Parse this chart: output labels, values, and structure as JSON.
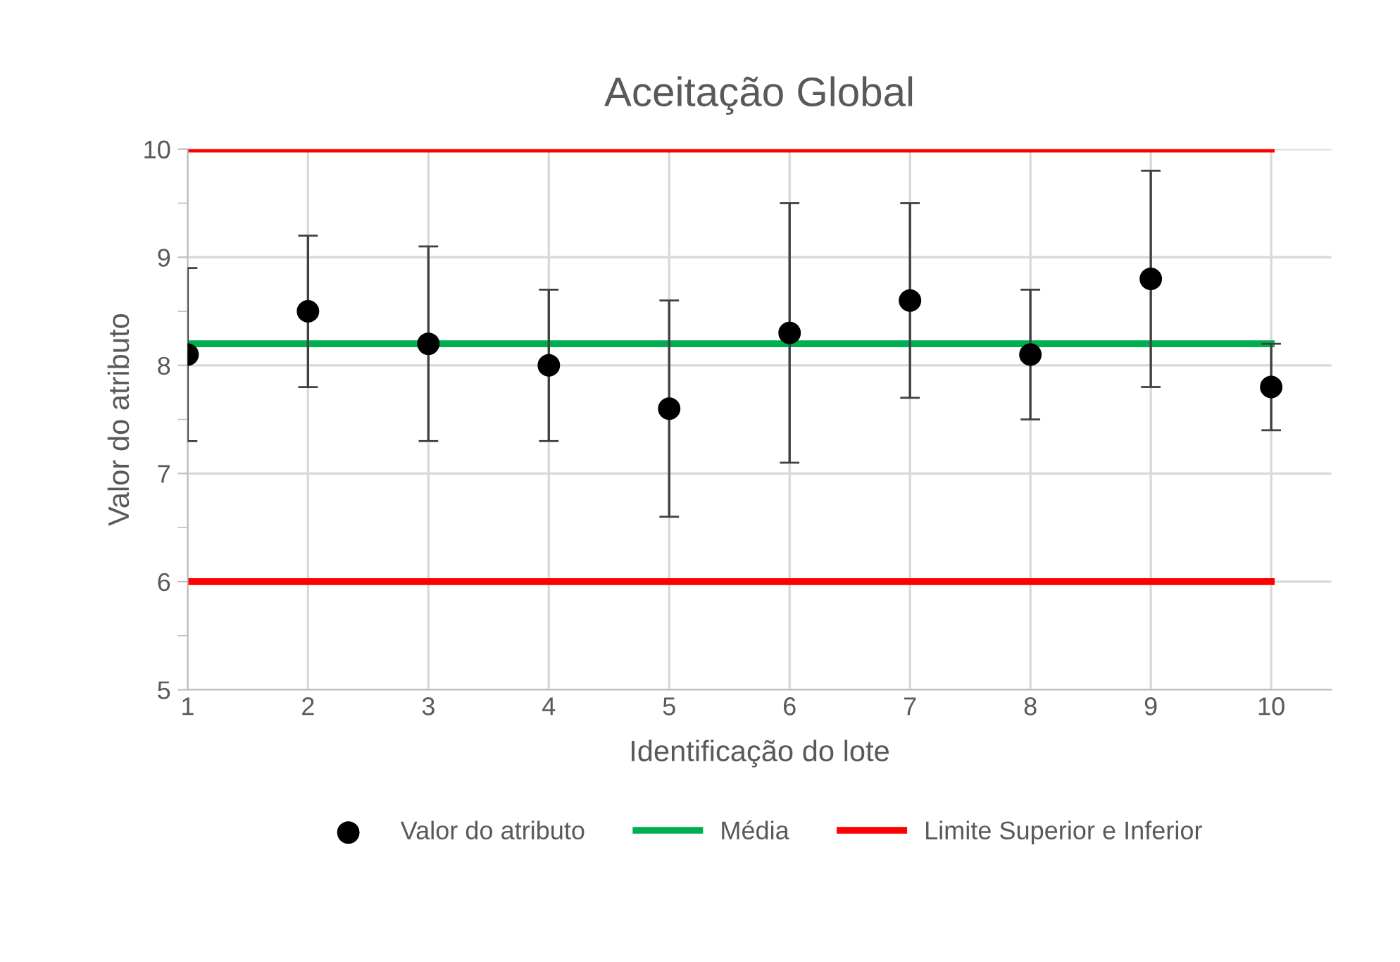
{
  "chart_data": {
    "type": "scatter",
    "title": "Aceitação Global",
    "xlabel": "Identificação do lote",
    "ylabel": "Valor do atributo",
    "xlim": [
      1,
      10.5
    ],
    "xticks": [
      1,
      2,
      3,
      4,
      5,
      6,
      7,
      8,
      9,
      10
    ],
    "ylim": [
      5,
      10
    ],
    "yticks": [
      5,
      6,
      7,
      8,
      9,
      10
    ],
    "grid": true,
    "legend": "bottom",
    "series": [
      {
        "name": "Valor do atributo",
        "color": "#000000",
        "marker": "circle",
        "x": [
          1,
          2,
          3,
          4,
          5,
          6,
          7,
          8,
          9,
          10
        ],
        "values": [
          8.1,
          8.5,
          8.2,
          8.0,
          7.6,
          8.3,
          8.6,
          8.1,
          8.8,
          7.8
        ],
        "errors": [
          [
            7.3,
            8.9
          ],
          [
            7.8,
            9.2
          ],
          [
            7.3,
            9.1
          ],
          [
            7.3,
            8.7
          ],
          [
            6.6,
            8.6
          ],
          [
            7.1,
            9.5
          ],
          [
            7.7,
            9.5
          ],
          [
            7.5,
            8.7
          ],
          [
            7.8,
            9.8
          ],
          [
            7.4,
            8.2
          ]
        ]
      },
      {
        "name": "Média",
        "type": "line",
        "color": "#00b050",
        "x": [
          1,
          10
        ],
        "values": [
          8.2,
          8.2
        ]
      },
      {
        "name": "Limite Superior e Inferior",
        "type": "line",
        "color": "#ff0000",
        "x": [
          1,
          10
        ],
        "values": [
          10,
          10
        ]
      },
      {
        "type": "line",
        "color": "#ff0000",
        "x": [
          1,
          10
        ],
        "values": [
          6,
          6
        ]
      }
    ]
  }
}
